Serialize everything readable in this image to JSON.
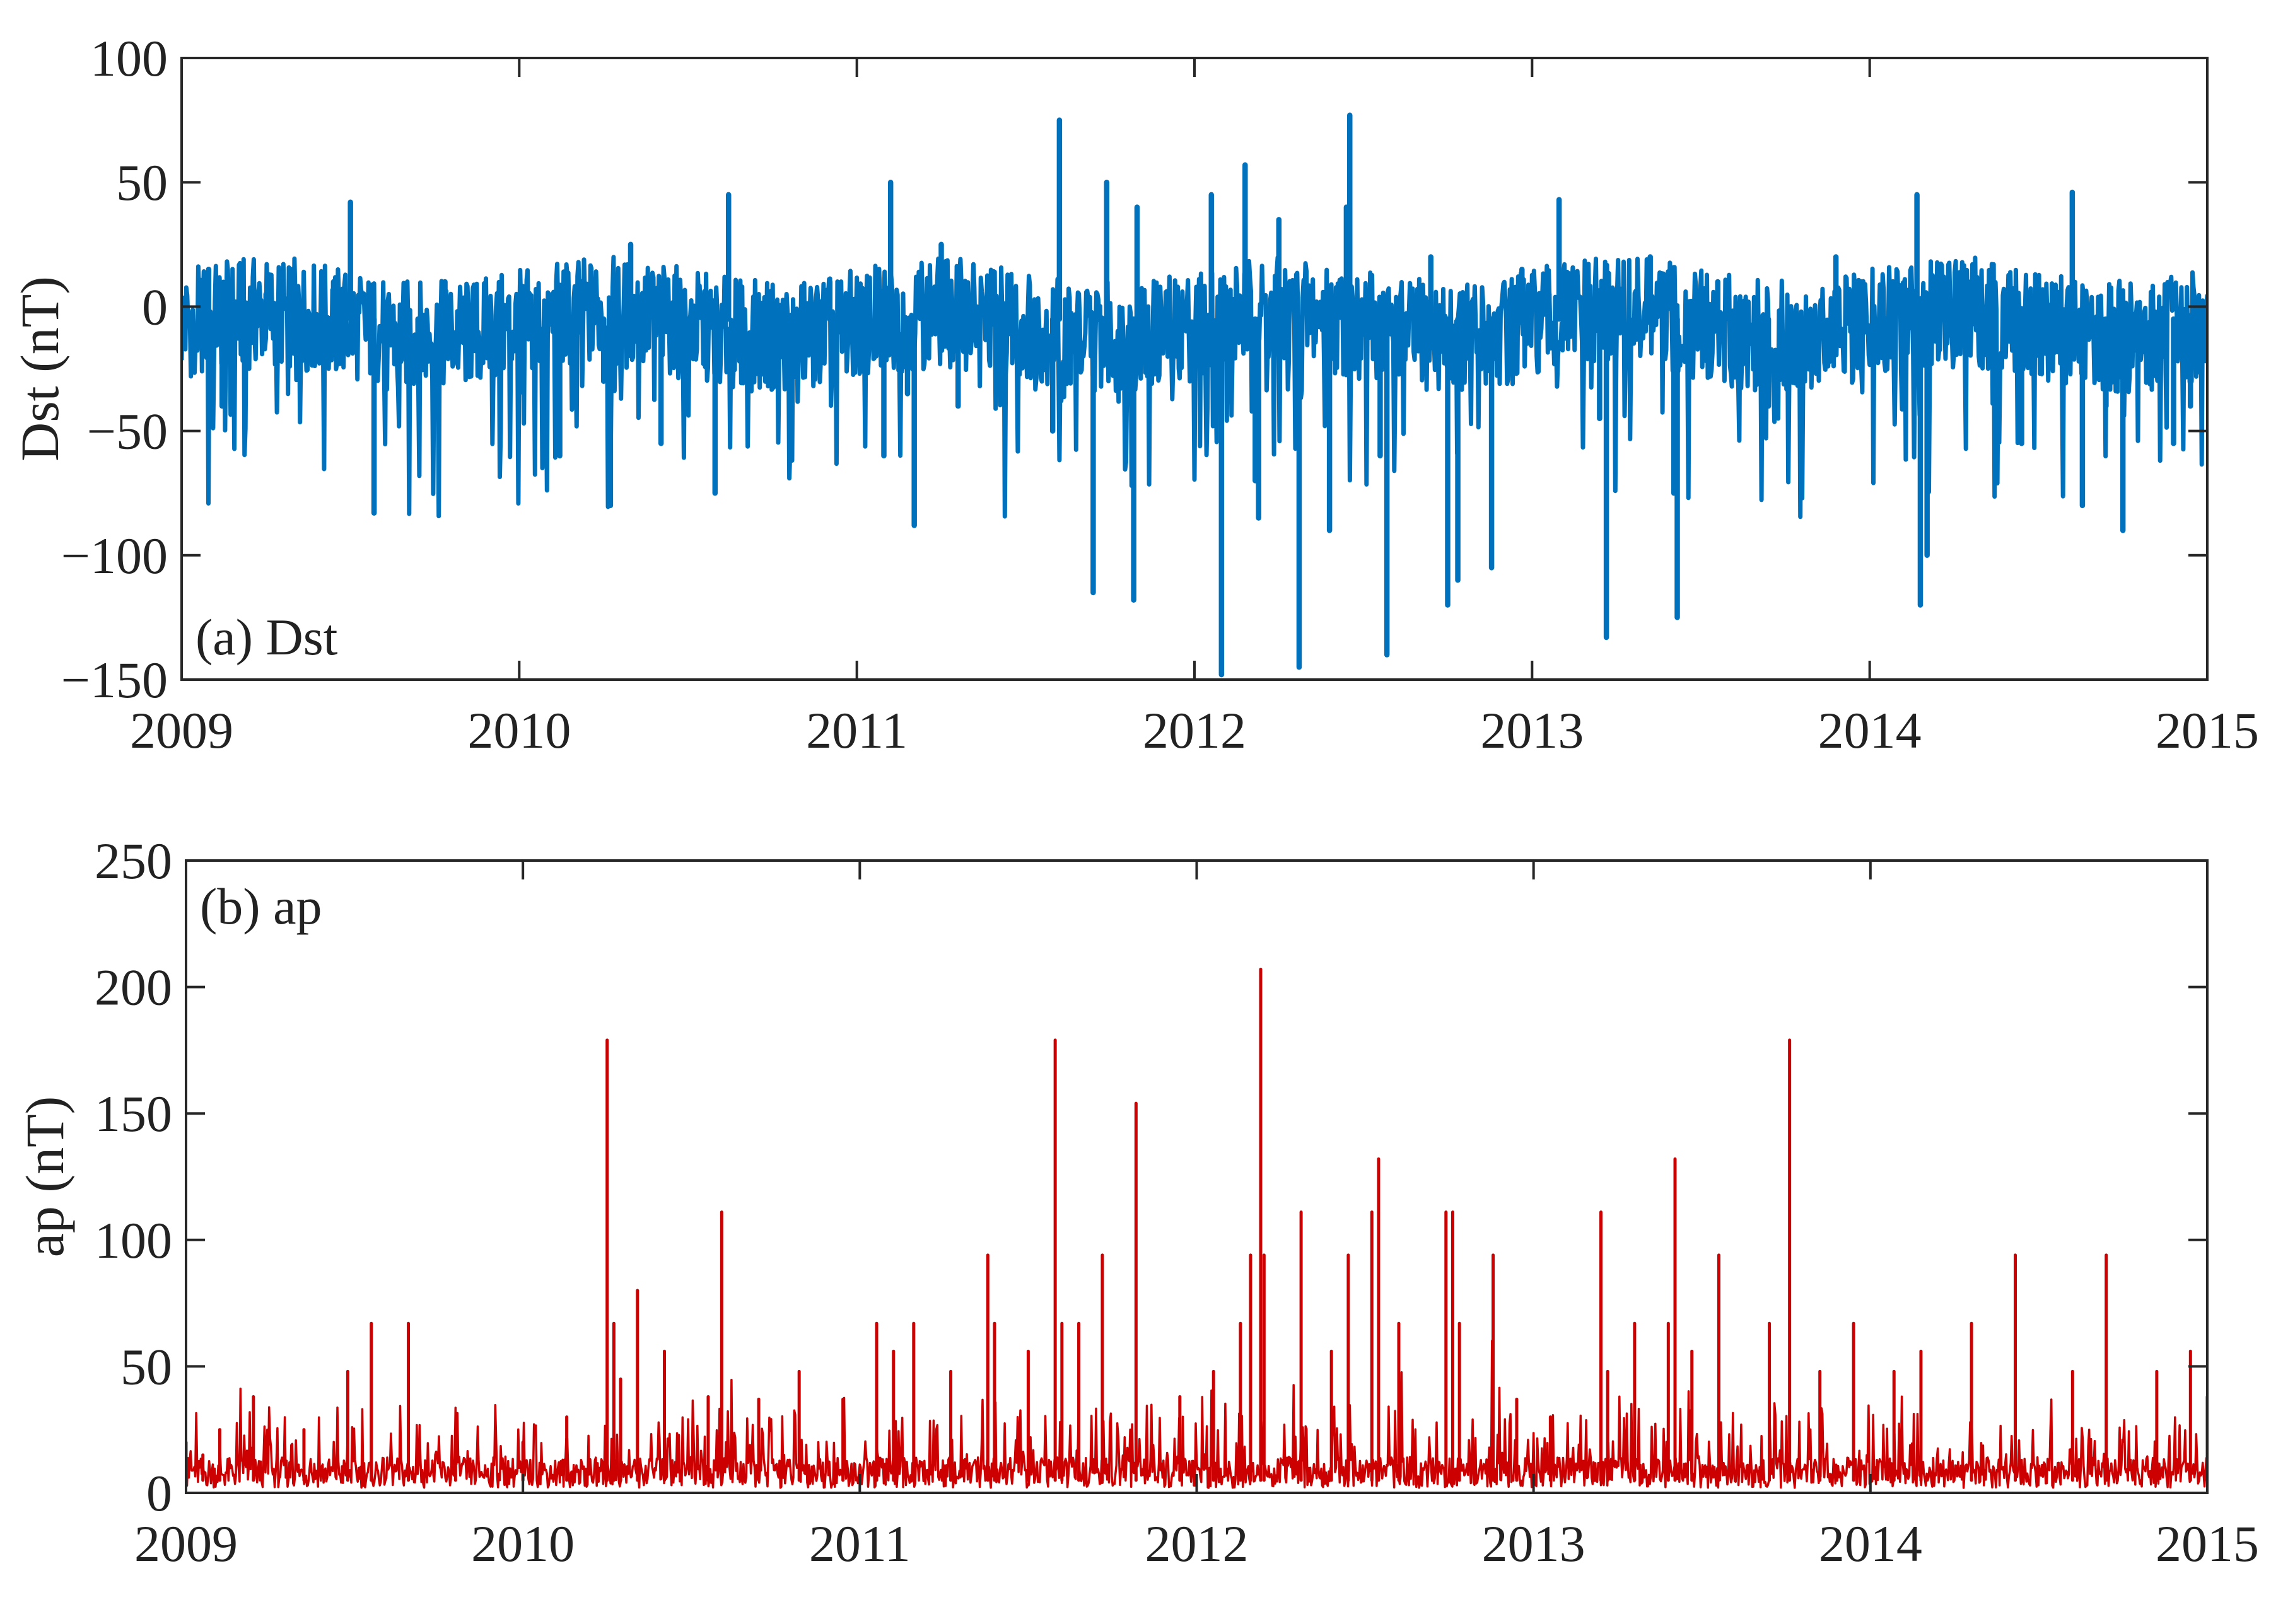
{
  "colors": {
    "dst_line": "#0072BD",
    "ap_line": "#CC0000",
    "axes": "#262626",
    "background": "#FFFFFF"
  },
  "chart_data": [
    {
      "type": "line",
      "panel_label": "(a) Dst",
      "ylabel": "Dst (nT)",
      "xlabel": "",
      "xlim": [
        2009,
        2015
      ],
      "ylim": [
        -150,
        100
      ],
      "x_ticks": [
        "2009",
        "2010",
        "2011",
        "2012",
        "2013",
        "2014",
        "2015"
      ],
      "y_ticks": [
        "100",
        "50",
        "0",
        "−50",
        "−100",
        "−150"
      ],
      "grid": false,
      "series": [
        {
          "x": [
            2009.0,
            2009.08,
            2009.12,
            2009.25,
            2009.35,
            2009.45,
            2009.5,
            2009.55,
            2009.57,
            2009.7,
            2009.78,
            2009.9,
            2010.0,
            2010.1,
            2010.12,
            2010.25,
            2010.27,
            2010.33,
            2010.42,
            2010.58,
            2010.62,
            2010.78,
            2010.92,
            2011.0,
            2011.08,
            2011.1,
            2011.15,
            2011.17,
            2011.25,
            2011.3,
            2011.4,
            2011.58,
            2011.6,
            2011.7,
            2011.74,
            2011.82,
            2011.83,
            2011.95,
            2012.05,
            2012.08,
            2012.15,
            2012.18,
            2012.19,
            2012.25,
            2012.31,
            2012.4,
            2012.45,
            2012.46,
            2012.55,
            2012.57,
            2012.7,
            2012.75,
            2012.78,
            2012.88,
            2012.97,
            2013.05,
            2013.08,
            2013.2,
            2013.22,
            2013.35,
            2013.42,
            2013.43,
            2013.55,
            2013.7,
            2013.9,
            2014.05,
            2014.14,
            2014.15,
            2014.17,
            2014.3,
            2014.45,
            2014.6,
            2014.63,
            2014.7,
            2014.75,
            2014.9,
            2014.95,
            2015.0
          ],
          "values": [
            -10,
            15,
            -40,
            5,
            -20,
            10,
            42,
            0,
            -83,
            -30,
            10,
            -20,
            5,
            -10,
            -60,
            -30,
            -80,
            25,
            -55,
            -75,
            45,
            -20,
            10,
            0,
            -60,
            50,
            -35,
            -88,
            25,
            -40,
            10,
            -50,
            75,
            -115,
            50,
            -118,
            40,
            -20,
            45,
            -148,
            57,
            -70,
            -85,
            35,
            -145,
            -90,
            40,
            77,
            -60,
            -140,
            20,
            -120,
            -110,
            -105,
            15,
            5,
            43,
            -45,
            -133,
            20,
            -75,
            -125,
            10,
            -40,
            20,
            -10,
            45,
            -120,
            -100,
            10,
            -55,
            46,
            -80,
            -40,
            -90,
            -55,
            -40,
            -20
          ]
        }
      ]
    },
    {
      "type": "line",
      "panel_label": "(b) ap",
      "ylabel": "ap (nT)",
      "xlabel": "",
      "xlim": [
        2009,
        2015
      ],
      "ylim": [
        0,
        250
      ],
      "x_ticks": [
        "2009",
        "2010",
        "2011",
        "2012",
        "2013",
        "2014",
        "2015"
      ],
      "y_ticks": [
        "250",
        "200",
        "150",
        "100",
        "50",
        "0"
      ],
      "grid": false,
      "series": [
        {
          "x": [
            2009.0,
            2009.05,
            2009.1,
            2009.2,
            2009.35,
            2009.48,
            2009.55,
            2009.66,
            2009.8,
            2010.0,
            2010.13,
            2010.25,
            2010.27,
            2010.29,
            2010.34,
            2010.42,
            2010.55,
            2010.59,
            2010.7,
            2010.82,
            2010.95,
            2011.05,
            2011.1,
            2011.16,
            2011.27,
            2011.38,
            2011.4,
            2011.5,
            2011.58,
            2011.6,
            2011.65,
            2011.72,
            2011.82,
            2011.95,
            2012.05,
            2012.13,
            2012.16,
            2012.19,
            2012.2,
            2012.31,
            2012.4,
            2012.45,
            2012.52,
            2012.54,
            2012.6,
            2012.74,
            2012.76,
            2012.78,
            2012.88,
            2012.95,
            2013.05,
            2013.2,
            2013.22,
            2013.3,
            2013.4,
            2013.42,
            2013.47,
            2013.55,
            2013.7,
            2013.76,
            2013.85,
            2013.95,
            2014.07,
            2014.15,
            2014.3,
            2014.43,
            2014.6,
            2014.7,
            2014.85,
            2014.95,
            2015.0
          ],
          "values": [
            20,
            15,
            25,
            38,
            25,
            48,
            67,
            67,
            25,
            20,
            30,
            179,
            67,
            45,
            80,
            56,
            38,
            111,
            37,
            48,
            37,
            67,
            56,
            67,
            48,
            94,
            67,
            56,
            179,
            67,
            67,
            94,
            154,
            38,
            48,
            67,
            94,
            207,
            94,
            111,
            56,
            94,
            111,
            132,
            67,
            111,
            111,
            67,
            94,
            37,
            30,
            111,
            48,
            67,
            67,
            132,
            56,
            94,
            67,
            179,
            48,
            67,
            48,
            56,
            67,
            94,
            48,
            94,
            48,
            56,
            38
          ]
        }
      ]
    }
  ]
}
